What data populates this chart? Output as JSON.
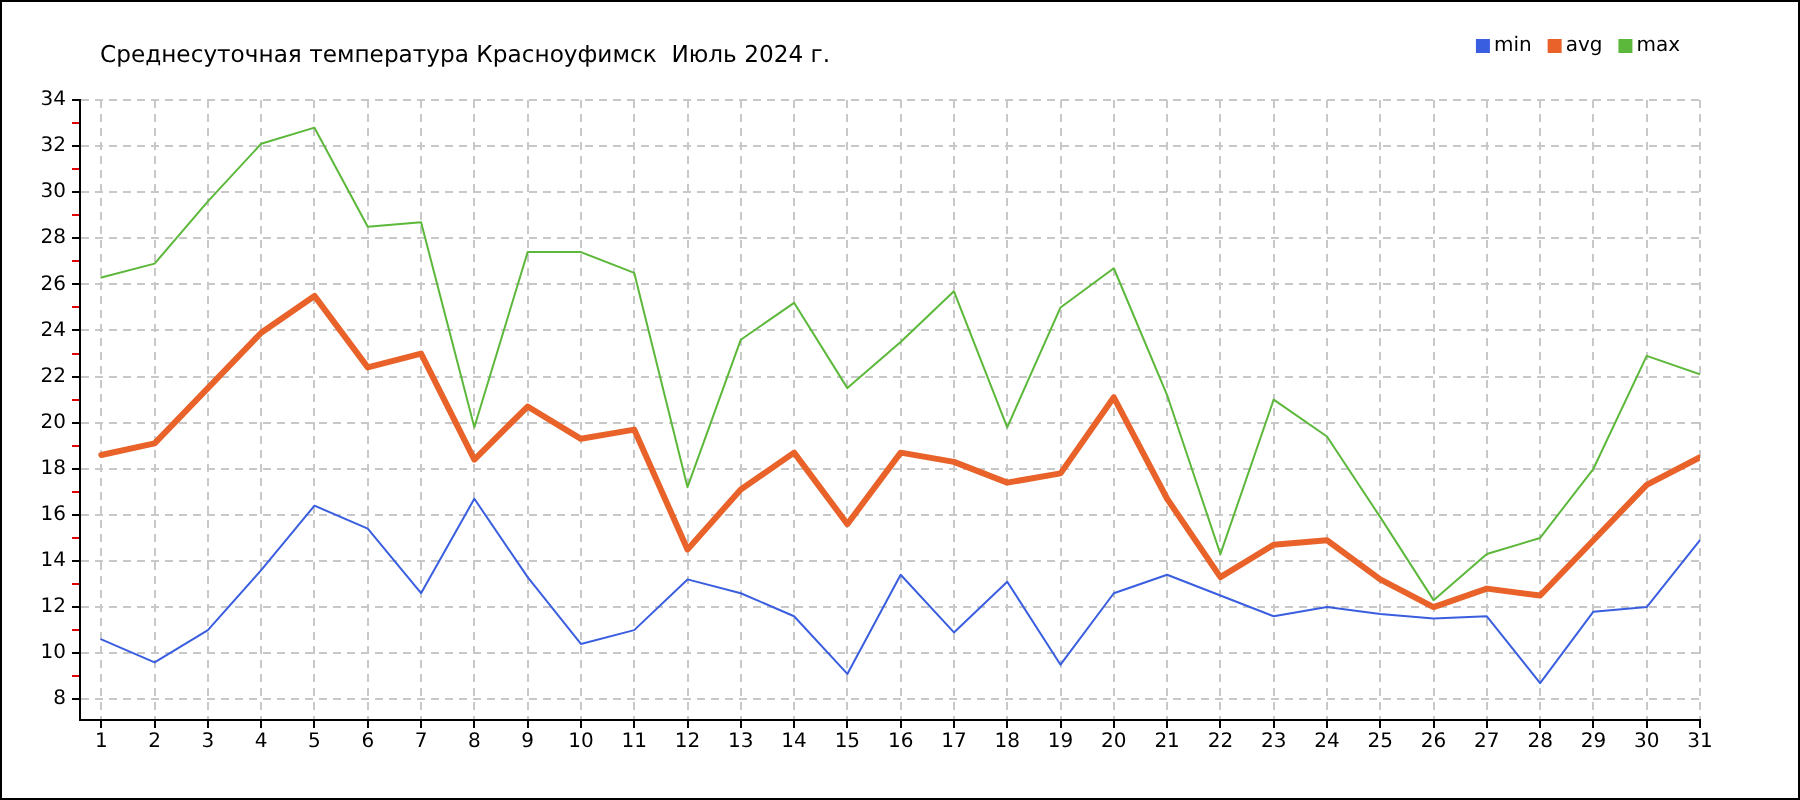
{
  "chart_data": {
    "type": "line",
    "title": "Среднесуточная температура Красноуфимск  Июль 2024 г.",
    "x": [
      1,
      2,
      3,
      4,
      5,
      6,
      7,
      8,
      9,
      10,
      11,
      12,
      13,
      14,
      15,
      16,
      17,
      18,
      19,
      20,
      21,
      22,
      23,
      24,
      25,
      26,
      27,
      28,
      29,
      30,
      31
    ],
    "xlim": [
      0.6,
      31
    ],
    "xticks": [
      1,
      2,
      3,
      4,
      5,
      6,
      7,
      8,
      9,
      10,
      11,
      12,
      13,
      14,
      15,
      16,
      17,
      18,
      19,
      20,
      21,
      22,
      23,
      24,
      25,
      26,
      27,
      28,
      29,
      30,
      31
    ],
    "ylim": [
      7.1,
      34
    ],
    "yticks": [
      8,
      {
        "value": 9,
        "label": null
      },
      10,
      {
        "value": 11,
        "label": null
      },
      12,
      {
        "value": 13,
        "label": null
      },
      14,
      {
        "value": 15,
        "label": null
      },
      16,
      {
        "value": 17,
        "label": null
      },
      18,
      {
        "value": 19,
        "label": null
      },
      20,
      {
        "value": 21,
        "label": null
      },
      22,
      {
        "value": 23,
        "label": null
      },
      24,
      {
        "value": 25,
        "label": null
      },
      26,
      {
        "value": 27,
        "label": null
      },
      28,
      {
        "value": 29,
        "label": null
      },
      30,
      {
        "value": 31,
        "label": null
      },
      32,
      {
        "value": 33,
        "label": null
      },
      34
    ],
    "series": [
      {
        "name": "min",
        "color": "#3a5ee0",
        "values": [
          10.6,
          9.6,
          11.0,
          13.6,
          16.4,
          15.4,
          12.6,
          16.7,
          13.3,
          10.4,
          11.0,
          13.2,
          12.6,
          11.6,
          9.1,
          13.4,
          10.9,
          13.1,
          9.5,
          12.6,
          13.4,
          12.5,
          11.6,
          12.0,
          11.7,
          11.5,
          11.6,
          8.7,
          11.8,
          12.0,
          14.9
        ]
      },
      {
        "name": "avg",
        "color": "#e8622a",
        "values": [
          18.6,
          19.1,
          21.5,
          23.9,
          25.5,
          22.4,
          23.0,
          18.4,
          20.7,
          19.3,
          19.7,
          14.5,
          17.1,
          18.7,
          15.6,
          18.7,
          18.3,
          17.4,
          17.8,
          21.1,
          16.7,
          13.3,
          14.7,
          14.9,
          13.2,
          12.0,
          12.8,
          12.5,
          14.9,
          17.3,
          18.5
        ]
      },
      {
        "name": "max",
        "color": "#5cb83a",
        "values": [
          26.3,
          26.9,
          29.6,
          32.1,
          32.8,
          28.5,
          28.7,
          19.8,
          27.4,
          27.4,
          26.5,
          17.2,
          23.6,
          25.2,
          21.5,
          23.5,
          25.7,
          19.8,
          25.0,
          26.7,
          21.2,
          14.3,
          21.0,
          19.4,
          15.9,
          12.3,
          14.3,
          15.0,
          18.0,
          22.9,
          22.1
        ]
      }
    ],
    "grid": true,
    "legend": "top right",
    "marker": "none",
    "line_style": "solid"
  }
}
